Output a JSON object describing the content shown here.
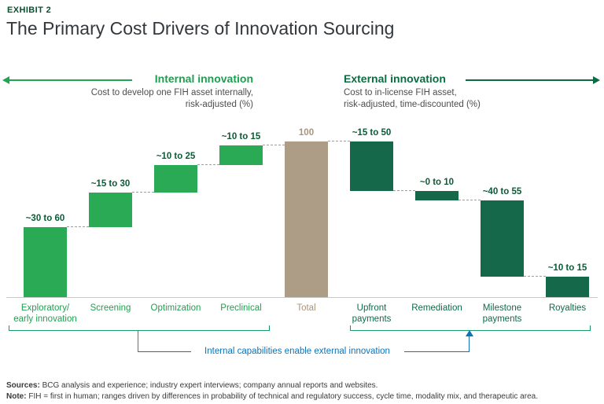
{
  "exhibit_label": "EXHIBIT 2",
  "title": "The Primary Cost Drivers of Innovation Sourcing",
  "sections": {
    "internal": {
      "header": "Internal innovation",
      "subtitle_line1": "Cost to develop one FIH asset internally,",
      "subtitle_line2": "risk-adjusted (%)"
    },
    "external": {
      "header": "External innovation",
      "subtitle_line1": "Cost to in-license FIH asset,",
      "subtitle_line2": "risk-adjusted, time-discounted (%)"
    }
  },
  "chart_data": {
    "type": "bar",
    "subtype": "waterfall",
    "unit": "%",
    "ylim": [
      0,
      100
    ],
    "categories": [
      "Exploratory/early innovation",
      "Screening",
      "Optimization",
      "Preclinical",
      "Total",
      "Upfront payments",
      "Remediation",
      "Milestone payments",
      "Royalties"
    ],
    "bars": [
      {
        "id": "exploratory",
        "label_lines": [
          "Exploratory/",
          "early innovation"
        ],
        "value_label": "~30 to 60",
        "range": [
          30,
          60
        ],
        "group": "internal",
        "cum_start": 0,
        "cum_end": 45
      },
      {
        "id": "screening",
        "label_lines": [
          "Screening"
        ],
        "value_label": "~15 to 30",
        "range": [
          15,
          30
        ],
        "group": "internal",
        "cum_start": 45,
        "cum_end": 67
      },
      {
        "id": "optimization",
        "label_lines": [
          "Optimization"
        ],
        "value_label": "~10 to 25",
        "range": [
          10,
          25
        ],
        "group": "internal",
        "cum_start": 67,
        "cum_end": 85
      },
      {
        "id": "preclinical",
        "label_lines": [
          "Preclinical"
        ],
        "value_label": "~10 to 15",
        "range": [
          10,
          15
        ],
        "group": "internal",
        "cum_start": 85,
        "cum_end": 97.5
      },
      {
        "id": "total",
        "label_lines": [
          "Total"
        ],
        "value_label": "100",
        "range": [
          100,
          100
        ],
        "group": "total",
        "cum_start": 0,
        "cum_end": 100
      },
      {
        "id": "upfront-payments",
        "label_lines": [
          "Upfront",
          "payments"
        ],
        "value_label": "~15 to 50",
        "range": [
          15,
          50
        ],
        "group": "external",
        "cum_start": 100,
        "cum_end": 68
      },
      {
        "id": "remediation",
        "label_lines": [
          "Remediation"
        ],
        "value_label": "~0 to 10",
        "range": [
          0,
          10
        ],
        "group": "external",
        "cum_start": 68,
        "cum_end": 62
      },
      {
        "id": "milestone-payments",
        "label_lines": [
          "Milestone",
          "payments"
        ],
        "value_label": "~40 to 55",
        "range": [
          40,
          55
        ],
        "group": "external",
        "cum_start": 62,
        "cum_end": 13
      },
      {
        "id": "royalties",
        "label_lines": [
          "Royalties"
        ],
        "value_label": "~10 to 15",
        "range": [
          10,
          15
        ],
        "group": "external",
        "cum_start": 13,
        "cum_end": 0
      }
    ],
    "colors": {
      "internal": "#2BAA55",
      "external": "#15694A",
      "total": "#AE9D86",
      "internal_label": "#21A04F",
      "external_label": "#0E6B48",
      "total_label": "#A8947B",
      "value_label": "#0A5C36",
      "value_label_total": "#A8947B",
      "connector": "#9E9E9E"
    }
  },
  "annotation": {
    "text": "Internal capabilities enable external innovation",
    "color": "#0D72B8"
  },
  "footer": {
    "sources_label": "Sources:",
    "sources_text": " BCG analysis and experience; industry expert interviews; company annual reports and websites.",
    "note_label": "Note:",
    "note_text": " FIH = first in human; ranges driven by differences in probability of technical and regulatory success, cycle time, modality mix, and therapeutic area."
  }
}
